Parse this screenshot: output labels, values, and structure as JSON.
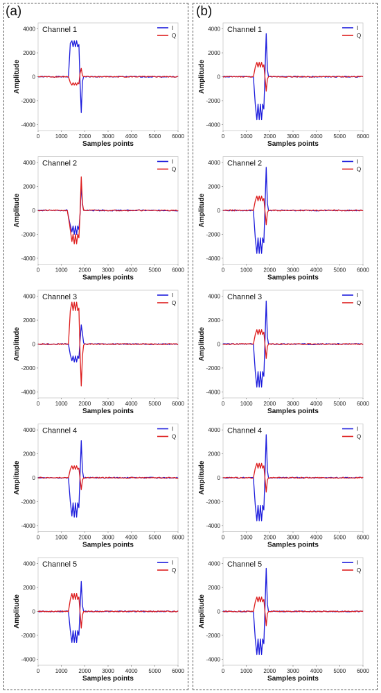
{
  "panels": [
    {
      "label": "(a)"
    },
    {
      "label": "(b)"
    }
  ],
  "series_colors": {
    "I": "#1a1adc",
    "Q": "#dd1c1c"
  },
  "chart_data": [
    {
      "type": "line",
      "panel": "(a)",
      "row": 1,
      "title": "Channel 1",
      "xlabel": "Samples points",
      "ylabel": "Amplitude",
      "xlim": [
        0,
        6000
      ],
      "ylim": [
        -4500,
        4500
      ],
      "xticks": [
        0,
        1000,
        2000,
        3000,
        4000,
        5000,
        6000
      ],
      "yticks": [
        -4000,
        -2000,
        0,
        2000,
        4000
      ],
      "legend": "top-right",
      "series": [
        {
          "name": "I",
          "x": [
            0,
            1300,
            1380,
            1450,
            1500,
            1550,
            1600,
            1650,
            1700,
            1750,
            1800,
            1850,
            1900,
            1950,
            6000
          ],
          "y": [
            0,
            0,
            2800,
            3000,
            2500,
            3000,
            2500,
            3000,
            2500,
            2700,
            -500,
            -3000,
            -400,
            0,
            0
          ]
        },
        {
          "name": "Q",
          "x": [
            0,
            1300,
            1380,
            1450,
            1500,
            1550,
            1600,
            1650,
            1700,
            1750,
            1800,
            1850,
            1900,
            1950,
            6000
          ],
          "y": [
            0,
            0,
            -500,
            -700,
            -500,
            -700,
            -500,
            -700,
            -500,
            -600,
            300,
            700,
            100,
            0,
            0
          ]
        }
      ]
    },
    {
      "type": "line",
      "panel": "(a)",
      "row": 2,
      "title": "Channel 2",
      "xlabel": "Samples points",
      "ylabel": "Amplitude",
      "xlim": [
        0,
        6000
      ],
      "ylim": [
        -4500,
        4500
      ],
      "xticks": [
        0,
        1000,
        2000,
        3000,
        4000,
        5000,
        6000
      ],
      "yticks": [
        -4000,
        -2000,
        0,
        2000,
        4000
      ],
      "legend": "top-right",
      "series": [
        {
          "name": "I",
          "x": [
            0,
            1250,
            1350,
            1450,
            1500,
            1550,
            1600,
            1650,
            1700,
            1750,
            1800,
            1850,
            1900,
            1950,
            6000
          ],
          "y": [
            0,
            0,
            -1000,
            -1800,
            -1300,
            -2000,
            -1300,
            -2000,
            -1300,
            -1600,
            -300,
            2100,
            500,
            0,
            0
          ]
        },
        {
          "name": "Q",
          "x": [
            0,
            1250,
            1350,
            1450,
            1500,
            1550,
            1600,
            1650,
            1700,
            1750,
            1800,
            1850,
            1900,
            1950,
            6000
          ],
          "y": [
            0,
            0,
            -1200,
            -2600,
            -2000,
            -2800,
            -2000,
            -2800,
            -2000,
            -2300,
            -200,
            2800,
            600,
            0,
            0
          ]
        }
      ]
    },
    {
      "type": "line",
      "panel": "(a)",
      "row": 3,
      "title": "Channel 3",
      "xlabel": "Samples points",
      "ylabel": "Amplitude",
      "xlim": [
        0,
        6000
      ],
      "ylim": [
        -4500,
        4500
      ],
      "xticks": [
        0,
        1000,
        2000,
        3000,
        4000,
        5000,
        6000
      ],
      "yticks": [
        -4000,
        -2000,
        0,
        2000,
        4000
      ],
      "legend": "top-right",
      "series": [
        {
          "name": "I",
          "x": [
            0,
            1300,
            1380,
            1450,
            1500,
            1550,
            1600,
            1650,
            1700,
            1750,
            1800,
            1850,
            1900,
            1950,
            2000,
            6000
          ],
          "y": [
            0,
            0,
            -900,
            -1400,
            -1000,
            -1500,
            -1000,
            -1500,
            -1000,
            -1200,
            300,
            1600,
            900,
            100,
            0,
            0
          ]
        },
        {
          "name": "Q",
          "x": [
            0,
            1300,
            1380,
            1450,
            1500,
            1550,
            1600,
            1650,
            1700,
            1750,
            1800,
            1850,
            1900,
            1950,
            2000,
            6000
          ],
          "y": [
            0,
            0,
            2800,
            3500,
            2800,
            3500,
            2800,
            3500,
            2800,
            3000,
            -800,
            -3500,
            -1000,
            -100,
            0,
            0
          ]
        }
      ]
    },
    {
      "type": "line",
      "panel": "(a)",
      "row": 4,
      "title": "Channel 4",
      "xlabel": "Samples points",
      "ylabel": "Amplitude",
      "xlim": [
        0,
        6000
      ],
      "ylim": [
        -4500,
        4500
      ],
      "xticks": [
        0,
        1000,
        2000,
        3000,
        4000,
        5000,
        6000
      ],
      "yticks": [
        -4000,
        -2000,
        0,
        2000,
        4000
      ],
      "legend": "top-right",
      "series": [
        {
          "name": "I",
          "x": [
            0,
            1300,
            1380,
            1450,
            1500,
            1550,
            1600,
            1650,
            1700,
            1750,
            1800,
            1850,
            1900,
            1950,
            6000
          ],
          "y": [
            0,
            0,
            -2000,
            -3200,
            -2100,
            -3300,
            -2100,
            -3300,
            -2100,
            -2500,
            300,
            3100,
            600,
            0,
            0
          ]
        },
        {
          "name": "Q",
          "x": [
            0,
            1300,
            1380,
            1450,
            1500,
            1550,
            1600,
            1650,
            1700,
            1750,
            1800,
            1850,
            1900,
            1950,
            6000
          ],
          "y": [
            0,
            0,
            700,
            1000,
            700,
            1000,
            700,
            1000,
            700,
            800,
            -100,
            -1000,
            -200,
            0,
            0
          ]
        }
      ]
    },
    {
      "type": "line",
      "panel": "(a)",
      "row": 5,
      "title": "Channel 5",
      "xlabel": "Samples points",
      "ylabel": "Amplitude",
      "xlim": [
        0,
        6000
      ],
      "ylim": [
        -4500,
        4500
      ],
      "xticks": [
        0,
        1000,
        2000,
        3000,
        4000,
        5000,
        6000
      ],
      "yticks": [
        -4000,
        -2000,
        0,
        2000,
        4000
      ],
      "legend": "top-right",
      "series": [
        {
          "name": "I",
          "x": [
            0,
            1300,
            1380,
            1450,
            1500,
            1550,
            1600,
            1650,
            1700,
            1750,
            1800,
            1850,
            1900,
            1950,
            6000
          ],
          "y": [
            0,
            0,
            -1600,
            -2600,
            -1600,
            -2600,
            -1600,
            -2600,
            -1600,
            -2000,
            300,
            2500,
            500,
            0,
            0
          ]
        },
        {
          "name": "Q",
          "x": [
            0,
            1300,
            1380,
            1450,
            1500,
            1550,
            1600,
            1650,
            1700,
            1750,
            1800,
            1850,
            1900,
            1950,
            6000
          ],
          "y": [
            0,
            0,
            1000,
            1500,
            1000,
            1500,
            1000,
            1500,
            1000,
            1200,
            -100,
            -1400,
            -300,
            0,
            0
          ]
        }
      ]
    },
    {
      "type": "line",
      "panel": "(b)",
      "row": 1,
      "title": "Channel 1",
      "xlabel": "Samples points",
      "ylabel": "Amplitude",
      "xlim": [
        0,
        6000
      ],
      "ylim": [
        -4500,
        4500
      ],
      "xticks": [
        0,
        1000,
        2000,
        3000,
        4000,
        5000,
        6000
      ],
      "yticks": [
        -4000,
        -2000,
        0,
        2000,
        4000
      ],
      "legend": "top-right",
      "series": [
        {
          "name": "I",
          "x": [
            0,
            1300,
            1380,
            1450,
            1500,
            1550,
            1600,
            1650,
            1700,
            1750,
            1800,
            1850,
            1900,
            1950,
            6000
          ],
          "y": [
            0,
            0,
            -2300,
            -3600,
            -2300,
            -3600,
            -2300,
            -3600,
            -2300,
            -2700,
            400,
            3600,
            600,
            0,
            0
          ]
        },
        {
          "name": "Q",
          "x": [
            0,
            1300,
            1380,
            1450,
            1500,
            1550,
            1600,
            1650,
            1700,
            1750,
            1800,
            1850,
            1900,
            1950,
            6000
          ],
          "y": [
            0,
            0,
            800,
            1200,
            800,
            1200,
            800,
            1200,
            800,
            1000,
            -100,
            -1200,
            -200,
            0,
            0
          ]
        }
      ]
    },
    {
      "type": "line",
      "panel": "(b)",
      "row": 2,
      "title": "Channel 2",
      "xlabel": "Samples points",
      "ylabel": "Amplitude",
      "xlim": [
        0,
        6000
      ],
      "ylim": [
        -4500,
        4500
      ],
      "xticks": [
        0,
        1000,
        2000,
        3000,
        4000,
        5000,
        6000
      ],
      "yticks": [
        -4000,
        -2000,
        0,
        2000,
        4000
      ],
      "legend": "top-right",
      "series": [
        {
          "name": "I",
          "x": [
            0,
            1300,
            1380,
            1450,
            1500,
            1550,
            1600,
            1650,
            1700,
            1750,
            1800,
            1850,
            1900,
            1950,
            6000
          ],
          "y": [
            0,
            0,
            -2300,
            -3600,
            -2300,
            -3600,
            -2300,
            -3600,
            -2300,
            -2700,
            400,
            3600,
            600,
            0,
            0
          ]
        },
        {
          "name": "Q",
          "x": [
            0,
            1300,
            1380,
            1450,
            1500,
            1550,
            1600,
            1650,
            1700,
            1750,
            1800,
            1850,
            1900,
            1950,
            6000
          ],
          "y": [
            0,
            0,
            800,
            1200,
            800,
            1200,
            800,
            1200,
            800,
            1000,
            -100,
            -1200,
            -200,
            0,
            0
          ]
        }
      ]
    },
    {
      "type": "line",
      "panel": "(b)",
      "row": 3,
      "title": "Channel 3",
      "xlabel": "Samples points",
      "ylabel": "Amplitude",
      "xlim": [
        0,
        6000
      ],
      "ylim": [
        -4500,
        4500
      ],
      "xticks": [
        0,
        1000,
        2000,
        3000,
        4000,
        5000,
        6000
      ],
      "yticks": [
        -4000,
        -2000,
        0,
        2000,
        4000
      ],
      "legend": "top-right",
      "series": [
        {
          "name": "I",
          "x": [
            0,
            1300,
            1380,
            1450,
            1500,
            1550,
            1600,
            1650,
            1700,
            1750,
            1800,
            1850,
            1900,
            1950,
            6000
          ],
          "y": [
            0,
            0,
            -2300,
            -3600,
            -2300,
            -3600,
            -2300,
            -3600,
            -2300,
            -2700,
            400,
            3600,
            600,
            0,
            0
          ]
        },
        {
          "name": "Q",
          "x": [
            0,
            1300,
            1380,
            1450,
            1500,
            1550,
            1600,
            1650,
            1700,
            1750,
            1800,
            1850,
            1900,
            1950,
            6000
          ],
          "y": [
            0,
            0,
            800,
            1200,
            800,
            1200,
            800,
            1200,
            800,
            1000,
            -100,
            -1200,
            -200,
            0,
            0
          ]
        }
      ]
    },
    {
      "type": "line",
      "panel": "(b)",
      "row": 4,
      "title": "Channel 4",
      "xlabel": "Samples points",
      "ylabel": "Amplitude",
      "xlim": [
        0,
        6000
      ],
      "ylim": [
        -4500,
        4500
      ],
      "xticks": [
        0,
        1000,
        2000,
        3000,
        4000,
        5000,
        6000
      ],
      "yticks": [
        -4000,
        -2000,
        0,
        2000,
        4000
      ],
      "legend": "top-right",
      "series": [
        {
          "name": "I",
          "x": [
            0,
            1300,
            1380,
            1450,
            1500,
            1550,
            1600,
            1650,
            1700,
            1750,
            1800,
            1850,
            1900,
            1950,
            6000
          ],
          "y": [
            0,
            0,
            -2300,
            -3600,
            -2300,
            -3600,
            -2300,
            -3600,
            -2300,
            -2700,
            400,
            3600,
            600,
            0,
            0
          ]
        },
        {
          "name": "Q",
          "x": [
            0,
            1300,
            1380,
            1450,
            1500,
            1550,
            1600,
            1650,
            1700,
            1750,
            1800,
            1850,
            1900,
            1950,
            6000
          ],
          "y": [
            0,
            0,
            800,
            1200,
            800,
            1200,
            800,
            1200,
            800,
            1000,
            -100,
            -1200,
            -200,
            0,
            0
          ]
        }
      ]
    },
    {
      "type": "line",
      "panel": "(b)",
      "row": 5,
      "title": "Channel 5",
      "xlabel": "Samples points",
      "ylabel": "Amplitude",
      "xlim": [
        0,
        6000
      ],
      "ylim": [
        -4500,
        4500
      ],
      "xticks": [
        0,
        1000,
        2000,
        3000,
        4000,
        5000,
        6000
      ],
      "yticks": [
        -4000,
        -2000,
        0,
        2000,
        4000
      ],
      "legend": "top-right",
      "series": [
        {
          "name": "I",
          "x": [
            0,
            1300,
            1380,
            1450,
            1500,
            1550,
            1600,
            1650,
            1700,
            1750,
            1800,
            1850,
            1900,
            1950,
            6000
          ],
          "y": [
            0,
            0,
            -2300,
            -3600,
            -2300,
            -3600,
            -2300,
            -3600,
            -2300,
            -2700,
            400,
            3600,
            600,
            0,
            0
          ]
        },
        {
          "name": "Q",
          "x": [
            0,
            1300,
            1380,
            1450,
            1500,
            1550,
            1600,
            1650,
            1700,
            1750,
            1800,
            1850,
            1900,
            1950,
            6000
          ],
          "y": [
            0,
            0,
            800,
            1200,
            800,
            1200,
            800,
            1200,
            800,
            1000,
            -100,
            -1200,
            -200,
            0,
            0
          ]
        }
      ]
    }
  ]
}
